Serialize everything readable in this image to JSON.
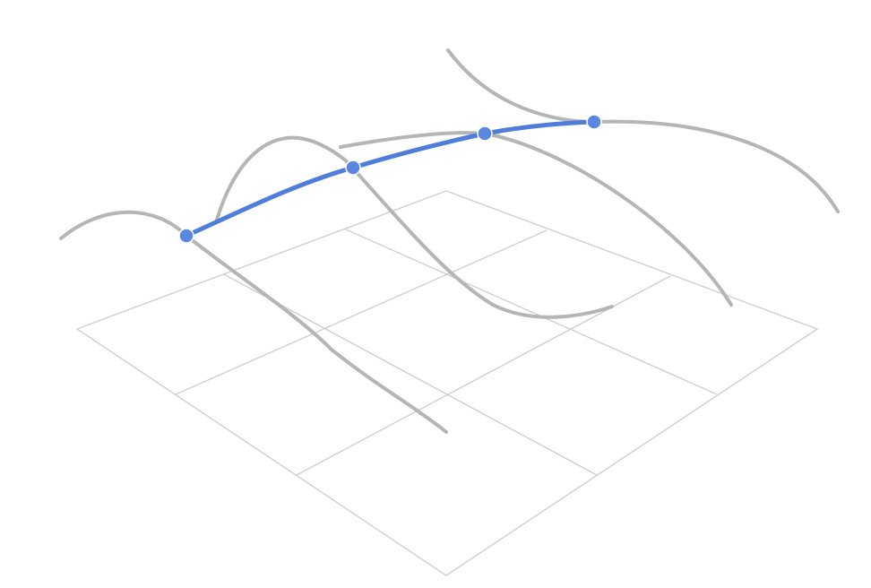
{
  "colors": {
    "background": "#ffffff",
    "grid": "#cfcfcf",
    "guide_curve": "#b5b5b5",
    "highlight_curve": "#4f7ddb",
    "control_point": "#5b86e0"
  },
  "diagram": {
    "grid_cells": "3x3",
    "guide_curve_count": 4,
    "highlight_curve_count": 1,
    "control_point_count": 4
  }
}
